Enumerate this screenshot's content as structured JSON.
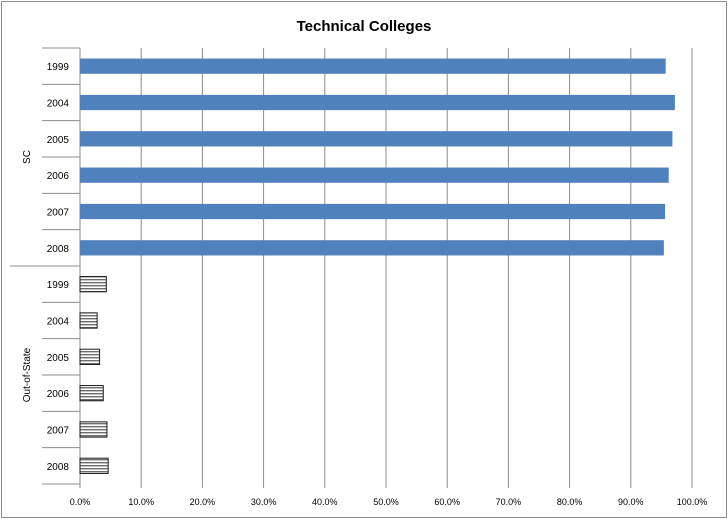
{
  "chart_data": {
    "type": "bar",
    "orientation": "horizontal",
    "title": "Technical Colleges",
    "xlim": [
      0,
      100
    ],
    "x_ticks": [
      "0.0%",
      "10.0%",
      "20.0%",
      "30.0%",
      "40.0%",
      "50.0%",
      "60.0%",
      "70.0%",
      "80.0%",
      "90.0%",
      "100.0%"
    ],
    "grid": true,
    "legend": "none",
    "groups": [
      {
        "label": "SC",
        "color": "#4F81BD",
        "pattern": "solid",
        "categories": [
          "1999",
          "2004",
          "2005",
          "2006",
          "2007",
          "2008"
        ],
        "values": [
          95.7,
          97.2,
          96.8,
          96.2,
          95.6,
          95.4
        ]
      },
      {
        "label": "Out-of-State",
        "color": "#808080",
        "pattern": "horizontal-stripes",
        "categories": [
          "1999",
          "2004",
          "2005",
          "2006",
          "2007",
          "2008"
        ],
        "values": [
          4.3,
          2.8,
          3.2,
          3.8,
          4.4,
          4.6
        ]
      }
    ]
  }
}
